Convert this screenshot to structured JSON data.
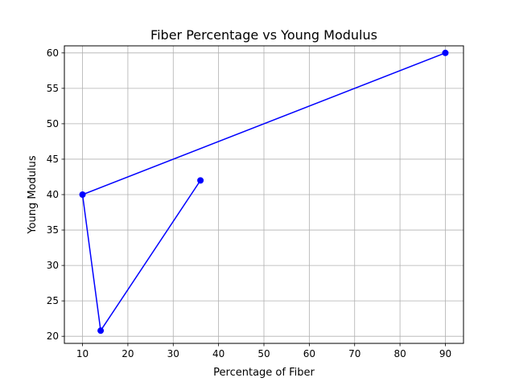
{
  "chart_data": {
    "type": "line",
    "title": "Fiber Percentage vs Young Modulus",
    "xlabel": "Percentage of Fiber",
    "ylabel": "Young Modulus",
    "xlim": [
      6.0,
      94.0
    ],
    "ylim": [
      19.0,
      61.0
    ],
    "xticks": [
      10,
      20,
      30,
      40,
      50,
      60,
      70,
      80,
      90
    ],
    "yticks": [
      20,
      25,
      30,
      35,
      40,
      45,
      50,
      55,
      60
    ],
    "grid": true,
    "series": [
      {
        "color": "#0000ff",
        "marker": "circle",
        "points": [
          {
            "x": 36,
            "y": 42
          },
          {
            "x": 14,
            "y": 20.8
          },
          {
            "x": 10,
            "y": 40
          },
          {
            "x": 90,
            "y": 60
          }
        ]
      }
    ]
  }
}
